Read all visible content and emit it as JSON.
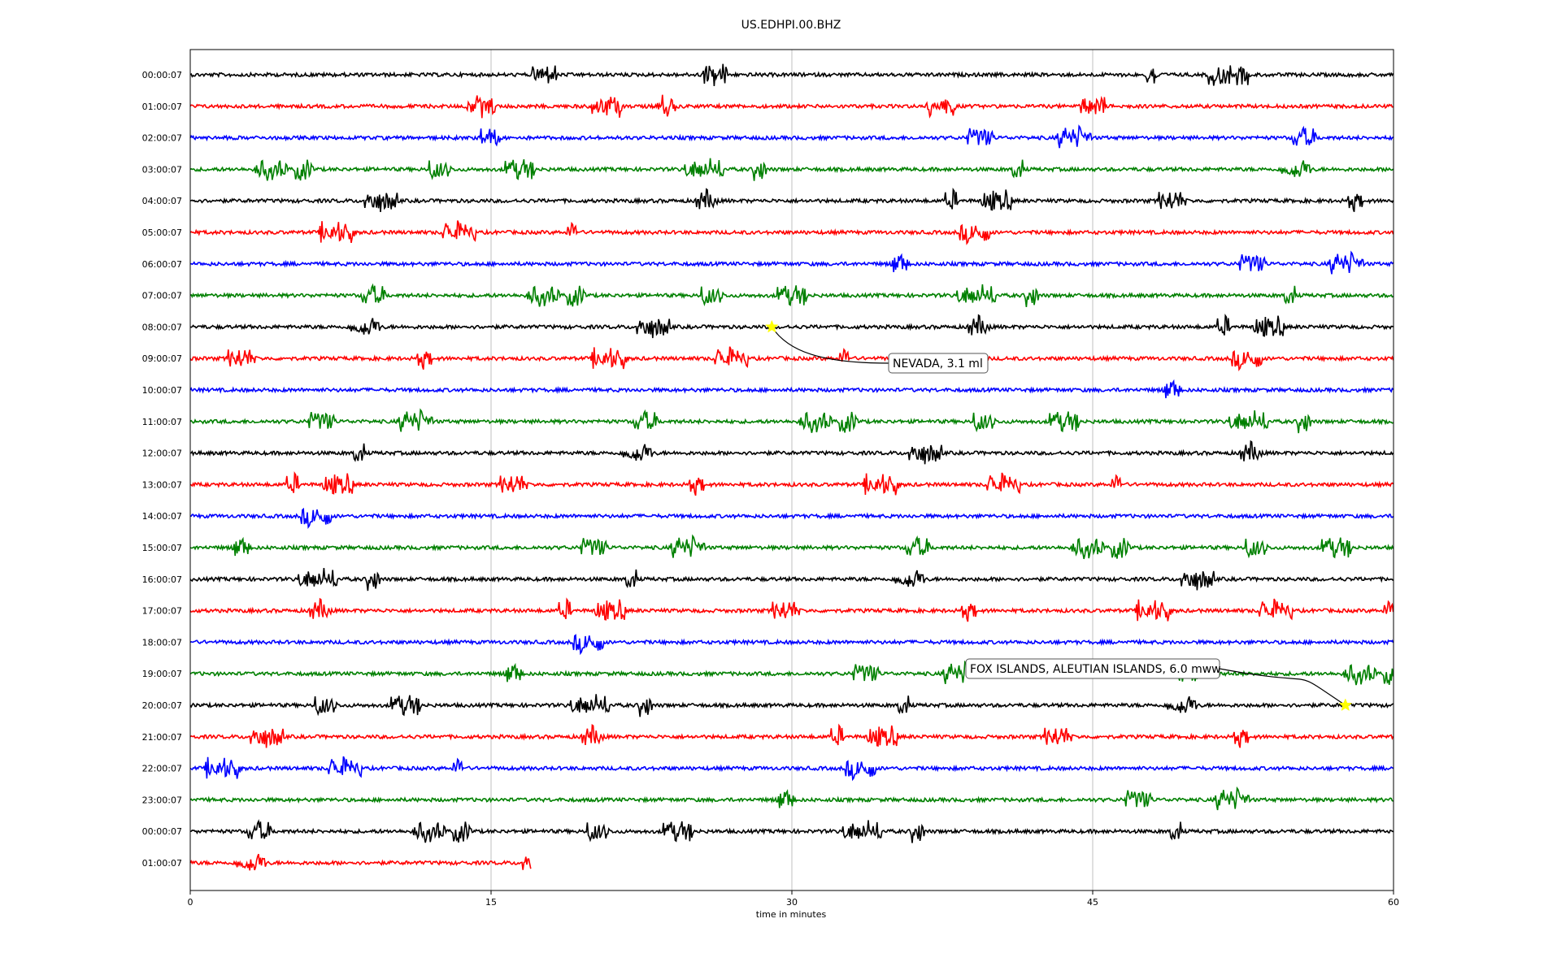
{
  "chart_data": {
    "type": "line",
    "title": "US.EDHPI.00.BHZ",
    "xlabel": "time in minutes",
    "ylabel": "",
    "xlim": [
      0,
      60
    ],
    "xticks": [
      0,
      15,
      30,
      45,
      60
    ],
    "grid": "vertical",
    "line_colors": [
      "#000000",
      "#ff0000",
      "#0000ff",
      "#008000"
    ],
    "row_labels": [
      "00:00:07",
      "01:00:07",
      "02:00:07",
      "03:00:07",
      "04:00:07",
      "05:00:07",
      "06:00:07",
      "07:00:07",
      "08:00:07",
      "09:00:07",
      "10:00:07",
      "11:00:07",
      "12:00:07",
      "13:00:07",
      "14:00:07",
      "15:00:07",
      "16:00:07",
      "17:00:07",
      "18:00:07",
      "19:00:07",
      "20:00:07",
      "21:00:07",
      "22:00:07",
      "23:00:07",
      "00:00:07",
      "01:00:07"
    ],
    "row_end_minutes": [
      60,
      60,
      60,
      60,
      60,
      60,
      60,
      60,
      60,
      60,
      60,
      60,
      60,
      60,
      60,
      60,
      60,
      60,
      60,
      60,
      60,
      60,
      60,
      60,
      60,
      17
    ],
    "events": [
      {
        "label": "NEVADA, 3.1 ml",
        "row": 8,
        "minute": 29.0,
        "star_color": "#ffff00"
      },
      {
        "label": "FOX ISLANDS, ALEUTIAN ISLANDS, 6.0 mww",
        "row": 20,
        "minute": 57.6,
        "star_color": "#ffff00"
      }
    ]
  }
}
